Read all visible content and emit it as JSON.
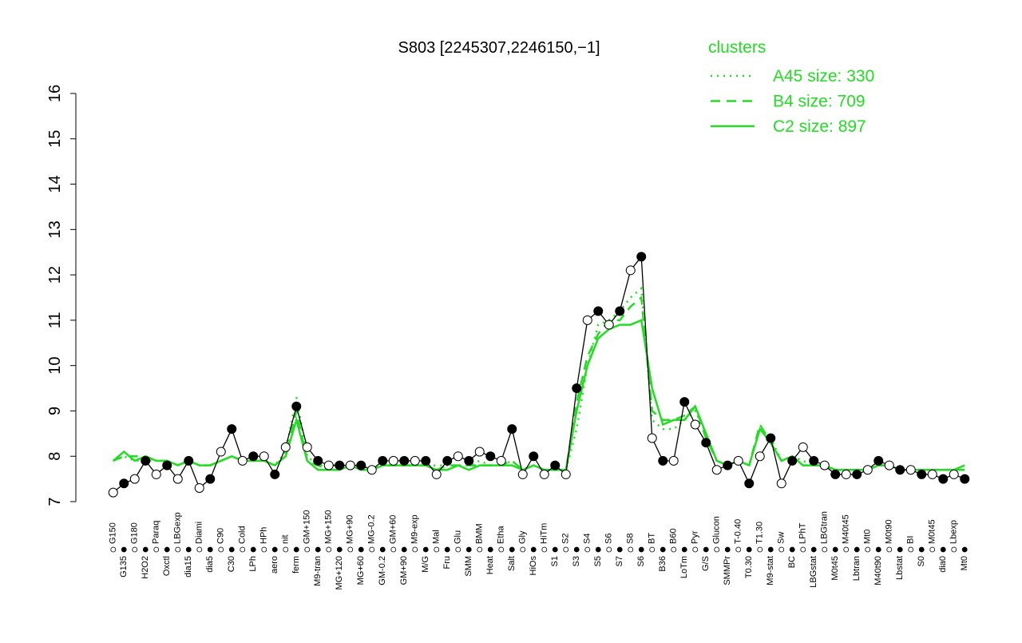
{
  "chart_data": {
    "type": "line",
    "title": "S803 [2245307,2246150,−1]",
    "categories": [
      "G150",
      "G135",
      "G180",
      "H2O2",
      "Paraq",
      "Oxctl",
      "LBGexp",
      "dia15",
      "Diami",
      "dia5",
      "C90",
      "C30",
      "Cold",
      "LPh",
      "HPh",
      "aero",
      "nit",
      "ferm",
      "GM+150",
      "M9-tran",
      "MG+150",
      "MG+120",
      "MG+90",
      "MG+60",
      "MG-0.2",
      "GM-0.2",
      "GM+60",
      "GM+90",
      "M9-exp",
      "M/G",
      "Mal",
      "Fru",
      "Glu",
      "SMM",
      "BMM",
      "Heat",
      "Etha",
      "Salt",
      "Gly",
      "HiOs",
      "HiTm",
      "S1",
      "S2",
      "S3",
      "S4",
      "S5",
      "S6",
      "S7",
      "S8",
      "S6",
      "BT",
      "B36",
      "B60",
      "LoTm",
      "Pyr",
      "G/S",
      "Glucon",
      "SMMPr",
      "T-0.40",
      "T0.30",
      "T1.30",
      "M9-stat",
      "Sw",
      "BC",
      "LPhT",
      "LBGstat",
      "LBGtran",
      "M0t45",
      "M40t45",
      "Lbtran",
      "Mt0",
      "M40t90",
      "M0t90",
      "Lbstat",
      "BI",
      "S0",
      "M0t45",
      "dia0",
      "Lbexp",
      "Mt0"
    ],
    "values": [
      7.2,
      7.4,
      7.5,
      7.9,
      7.6,
      7.8,
      7.5,
      7.9,
      7.3,
      7.5,
      8.1,
      8.6,
      7.9,
      8.0,
      8.0,
      7.6,
      8.2,
      9.1,
      8.2,
      7.9,
      7.8,
      7.8,
      7.8,
      7.8,
      7.7,
      7.9,
      7.9,
      7.9,
      7.9,
      7.9,
      7.6,
      7.9,
      8.0,
      7.9,
      8.1,
      8.0,
      7.9,
      8.6,
      7.6,
      8.0,
      7.6,
      7.8,
      7.6,
      9.5,
      11.0,
      11.2,
      10.9,
      11.2,
      12.1,
      12.4,
      8.4,
      7.9,
      7.9,
      9.2,
      8.7,
      8.3,
      7.7,
      7.8,
      7.9,
      7.4,
      8.0,
      8.4,
      7.4,
      7.9,
      8.2,
      7.9,
      7.8,
      7.6,
      7.6,
      7.6,
      7.7,
      7.9,
      7.8,
      7.7,
      7.7,
      7.6,
      7.6,
      7.5,
      7.6,
      7.5
    ],
    "color": "#000000",
    "legend_title": "clusters",
    "series": [
      {
        "name": "A45 size: 330",
        "color": "#22dd22",
        "dash": "dotted",
        "values": [
          7.9,
          8.0,
          7.9,
          7.9,
          7.9,
          7.9,
          7.8,
          7.9,
          7.8,
          7.8,
          7.9,
          8.0,
          7.9,
          7.9,
          7.9,
          7.8,
          8.1,
          9.3,
          8.0,
          7.8,
          7.8,
          7.8,
          7.8,
          7.8,
          7.7,
          7.8,
          7.8,
          7.8,
          7.8,
          7.8,
          7.8,
          7.8,
          7.8,
          7.8,
          7.9,
          7.8,
          7.8,
          7.9,
          7.7,
          7.8,
          7.7,
          7.7,
          7.7,
          8.6,
          10.0,
          10.9,
          11.0,
          11.2,
          11.5,
          11.7,
          8.8,
          8.6,
          8.6,
          8.8,
          9.0,
          8.5,
          7.9,
          7.8,
          7.9,
          7.8,
          8.6,
          8.4,
          7.9,
          8.0,
          7.9,
          7.8,
          7.8,
          7.7,
          7.7,
          7.7,
          7.7,
          7.8,
          7.8,
          7.7,
          7.7,
          7.7,
          7.7,
          7.7,
          7.7,
          7.7
        ]
      },
      {
        "name": "B4 size: 709",
        "color": "#22dd22",
        "dash": "dashed",
        "values": [
          7.9,
          8.0,
          8.0,
          8.0,
          7.9,
          7.9,
          7.8,
          7.9,
          7.8,
          7.8,
          7.9,
          8.0,
          7.9,
          7.9,
          7.9,
          7.8,
          8.0,
          9.0,
          7.9,
          7.8,
          7.7,
          7.7,
          7.8,
          7.7,
          7.7,
          7.8,
          7.8,
          7.8,
          7.8,
          7.8,
          7.7,
          7.8,
          7.8,
          7.8,
          7.8,
          7.8,
          7.8,
          7.9,
          7.7,
          7.8,
          7.7,
          7.7,
          7.7,
          9.2,
          10.2,
          10.7,
          11.0,
          11.0,
          11.3,
          11.5,
          9.0,
          8.8,
          8.8,
          8.9,
          9.1,
          8.4,
          7.9,
          7.8,
          7.9,
          7.8,
          8.7,
          8.3,
          7.9,
          8.0,
          7.8,
          7.8,
          7.8,
          7.7,
          7.7,
          7.7,
          7.7,
          7.8,
          7.8,
          7.7,
          7.7,
          7.7,
          7.7,
          7.7,
          7.7,
          7.7
        ]
      },
      {
        "name": "C2 size: 897",
        "color": "#22dd22",
        "dash": "solid",
        "values": [
          7.9,
          8.1,
          7.9,
          8.0,
          7.9,
          7.9,
          7.8,
          7.9,
          7.8,
          7.8,
          7.9,
          8.0,
          7.9,
          7.9,
          7.9,
          7.8,
          8.0,
          8.8,
          7.9,
          7.7,
          7.7,
          7.7,
          7.8,
          7.7,
          7.7,
          7.8,
          7.8,
          7.8,
          7.8,
          7.8,
          7.7,
          7.7,
          7.8,
          7.7,
          7.8,
          7.8,
          7.8,
          7.8,
          7.7,
          7.8,
          7.7,
          7.7,
          7.7,
          9.0,
          10.0,
          10.6,
          10.8,
          10.9,
          10.9,
          11.0,
          9.5,
          8.7,
          8.8,
          8.8,
          9.1,
          8.5,
          7.9,
          7.8,
          7.9,
          7.8,
          8.6,
          8.3,
          7.9,
          8.0,
          7.8,
          7.8,
          7.8,
          7.7,
          7.7,
          7.7,
          7.7,
          7.8,
          7.8,
          7.7,
          7.7,
          7.7,
          7.7,
          7.7,
          7.7,
          7.8
        ]
      }
    ],
    "ylim": [
      7,
      16
    ],
    "yticks": [
      7,
      8,
      9,
      10,
      11,
      12,
      13,
      14,
      15,
      16
    ]
  }
}
